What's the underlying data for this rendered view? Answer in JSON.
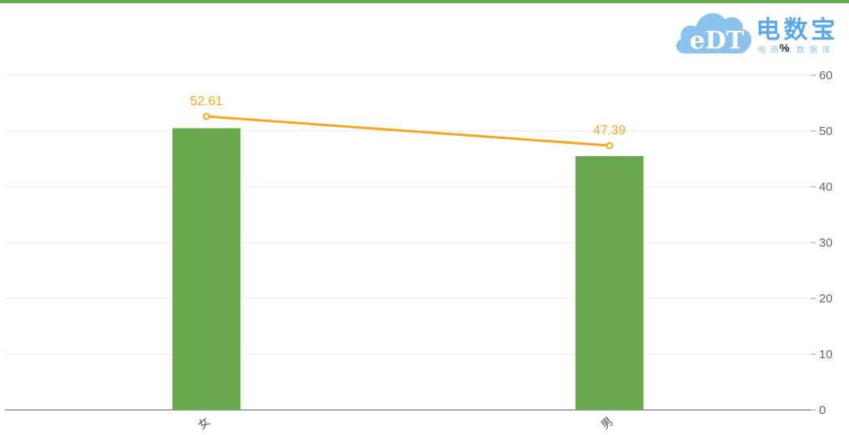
{
  "watermark": {
    "title": "电数宝",
    "subtitle": "电商大数据库",
    "logo_text": "eDT"
  },
  "chart_data": {
    "type": "bar",
    "categories": [
      "女",
      "男"
    ],
    "series": [
      {
        "type": "bar",
        "values": [
          50.5,
          45.5
        ],
        "color": "#6aa84f"
      },
      {
        "type": "line",
        "values": [
          52.61,
          47.39
        ],
        "color": "#f5a623",
        "labels": [
          "52.61",
          "47.39"
        ]
      }
    ],
    "ylabel": "%",
    "ylim": [
      0,
      60
    ],
    "yticks": [
      0,
      10,
      20,
      30,
      40,
      50,
      60
    ],
    "y_axis_side": "right",
    "grid": true
  }
}
